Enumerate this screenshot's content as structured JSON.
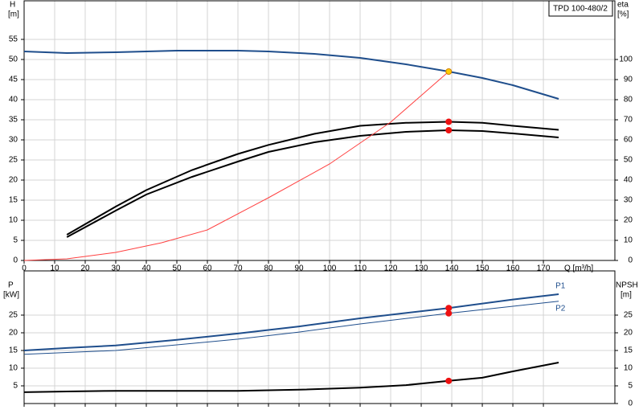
{
  "chart_data": [
    {
      "type": "line",
      "title": "TPD 100-480/2",
      "ylabel": "H",
      "yunit": "[m]",
      "y2label": "eta",
      "y2unit": "[%]",
      "xlabel": "Q [m³/h]",
      "xlim": [
        0,
        193.4
      ],
      "xticks": [
        0,
        10,
        20,
        30,
        40,
        50,
        60,
        70,
        80,
        90,
        100,
        110,
        120,
        130,
        140,
        150,
        160,
        170
      ],
      "ylim": [
        0,
        64.6
      ],
      "yticks": [
        0,
        5,
        10,
        15,
        20,
        25,
        30,
        35,
        40,
        45,
        50,
        55
      ],
      "y2lim": [
        0,
        129.2
      ],
      "y2ticks": [
        0,
        10,
        20,
        30,
        40,
        50,
        60,
        70,
        80,
        90,
        100
      ],
      "grid": true,
      "series": [
        {
          "color": "#1f4e8c",
          "width": 2,
          "x": [
            0,
            14,
            30,
            50,
            70,
            80,
            95,
            110,
            125,
            139,
            150,
            160,
            175
          ],
          "values": [
            52,
            51.6,
            51.8,
            52.2,
            52.2,
            52,
            51.4,
            50.4,
            48.8,
            47,
            45.4,
            43.6,
            40.2
          ]
        },
        {
          "color": "#000000",
          "width": 2,
          "axis": "y2",
          "x": [
            14,
            30,
            40,
            55,
            70,
            80,
            95,
            110,
            125,
            139,
            150,
            160,
            175
          ],
          "values": [
            12.8,
            26.8,
            35,
            45,
            53,
            57.5,
            63,
            67,
            68.5,
            69,
            68.5,
            67,
            65
          ]
        },
        {
          "color": "#000000",
          "width": 2,
          "axis": "y2",
          "x": [
            14,
            30,
            40,
            55,
            70,
            80,
            95,
            110,
            125,
            139,
            150,
            160,
            175
          ],
          "values": [
            11.6,
            24.8,
            32.8,
            41.6,
            49.2,
            54,
            58.8,
            62,
            64,
            64.8,
            64.4,
            63.2,
            61.2
          ]
        },
        {
          "color": "#ff4040",
          "width": 1,
          "x": [
            0,
            14,
            30,
            45,
            60,
            80,
            100,
            120,
            139
          ],
          "values": [
            0,
            0.4,
            2,
            4.4,
            7.6,
            15.6,
            24,
            34.4,
            47
          ]
        },
        {
          "color": "#ffcc00",
          "marker": true,
          "x": [
            139
          ],
          "values": [
            47
          ]
        },
        {
          "color": "#ee1111",
          "marker": true,
          "axis": "y2",
          "x": [
            139,
            139
          ],
          "values": [
            69,
            64.8
          ]
        }
      ]
    },
    {
      "type": "line",
      "ylabel": "P",
      "yunit": "[kW]",
      "y2label": "NPSH",
      "y2unit": "[m]",
      "xlim": [
        0,
        193.4
      ],
      "ylim": [
        0,
        37.5
      ],
      "yticks": [
        5,
        10,
        15,
        20,
        25
      ],
      "y2lim": [
        0,
        37.5
      ],
      "y2ticks": [
        0,
        5,
        10,
        15,
        20,
        25
      ],
      "grid": true,
      "series": [
        {
          "name": "P1",
          "color": "#1f4e8c",
          "width": 2,
          "x": [
            0,
            14,
            30,
            50,
            70,
            90,
            110,
            139,
            160,
            175
          ],
          "values": [
            15,
            15.7,
            16.4,
            18,
            19.8,
            21.8,
            24.1,
            27,
            29.4,
            30.9
          ]
        },
        {
          "name": "P2",
          "color": "#1f4e8c",
          "width": 1,
          "x": [
            0,
            30,
            50,
            70,
            90,
            110,
            139,
            160,
            175
          ],
          "values": [
            13.9,
            15,
            16.6,
            18.2,
            20.2,
            22.5,
            25.5,
            27.5,
            28.9
          ]
        },
        {
          "color": "#000000",
          "width": 2,
          "axis": "y2",
          "x": [
            0,
            14,
            30,
            50,
            70,
            90,
            110,
            125,
            139,
            150,
            160,
            175
          ],
          "values": [
            3.2,
            3.4,
            3.6,
            3.6,
            3.6,
            3.9,
            4.5,
            5.2,
            6.4,
            7.3,
            9.1,
            11.6
          ]
        },
        {
          "color": "#ee1111",
          "marker": true,
          "x": [
            139,
            139
          ],
          "values": [
            27,
            25.5
          ]
        },
        {
          "color": "#ee1111",
          "marker": true,
          "axis": "y2",
          "x": [
            139
          ],
          "values": [
            6.4
          ]
        }
      ]
    }
  ]
}
